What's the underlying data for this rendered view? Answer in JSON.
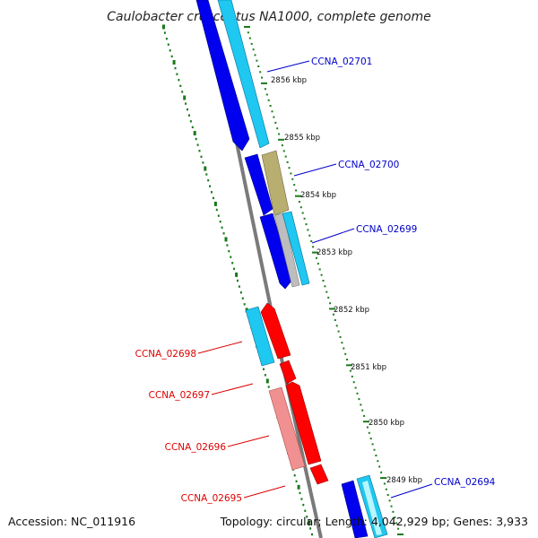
{
  "title": "Caulobacter crescentus NA1000, complete genome",
  "footer": {
    "accession": "Accession: NC_011916",
    "topology": "Topology: circular; Length: 4,042,929 bp; Genes: 3,933"
  },
  "ticks": [
    "2856 kbp",
    "2855 kbp",
    "2854 kbp",
    "2853 kbp",
    "2852 kbp",
    "2851 kbp",
    "2850 kbp",
    "2849 kbp"
  ],
  "gene_labels": [
    "CCNA_02701",
    "CCNA_02700",
    "CCNA_02699",
    "CCNA_02698",
    "CCNA_02697",
    "CCNA_02696",
    "CCNA_02695",
    "CCNA_02694"
  ],
  "colors": {
    "backbone": "#7a7a7a",
    "gc_skew_dots": "#1a7a1a",
    "blue_cds": "#0000ee",
    "cyan_cds": "#1ec8f0",
    "khaki_cds": "#b8ae70",
    "gray_cds": "#bdbdbd",
    "red_cds": "#ff0000",
    "pink_cds": "#f09090",
    "label_forward": "#0000cc",
    "label_reverse": "#dd0000"
  }
}
